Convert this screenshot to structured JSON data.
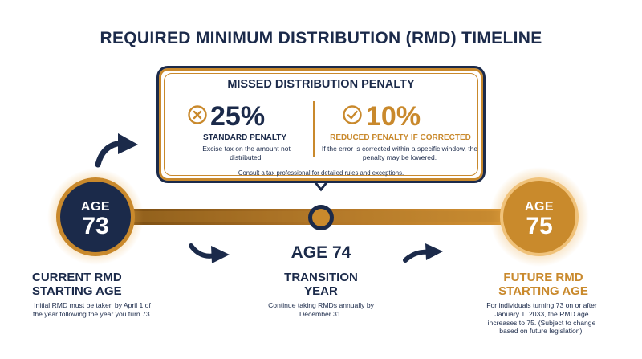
{
  "title": "REQUIRED MINIMUM DISTRIBUTION (RMD) TIMELINE",
  "penalty_box": {
    "title": "MISSED DISTRIBUTION PENALTY",
    "standard": {
      "icon": "x-circle-icon",
      "percent": "25%",
      "label": "STANDARD PENALTY",
      "description": "Excise tax on the amount not distributed."
    },
    "reduced": {
      "icon": "check-circle-icon",
      "percent": "10%",
      "label": "REDUCED PENALTY IF CORRECTED",
      "description": "If the error is corrected within a specific window, the penalty may be lowered."
    },
    "note": "Consult a tax professional for detailed rules and exceptions."
  },
  "milestones": [
    {
      "age_word": "AGE",
      "age_number": "73",
      "heading_line1": "CURRENT RMD",
      "heading_line2": "STARTING AGE",
      "description": "Initial RMD must be taken by April 1 of the year following the year you turn 73."
    },
    {
      "age_label": "AGE 74",
      "heading_line1": "TRANSITION",
      "heading_line2": "YEAR",
      "description": "Continue taking RMDs annually by December 31."
    },
    {
      "age_word": "AGE",
      "age_number": "75",
      "heading_line1": "FUTURE RMD",
      "heading_line2": "STARTING AGE",
      "description": "For individuals turning 73 on or after January 1, 2033, the RMD age increases to 75. (Subject to change based on future legislation)."
    }
  ],
  "colors": {
    "navy": "#1b2a4a",
    "gold": "#c9892c",
    "white": "#ffffff"
  }
}
